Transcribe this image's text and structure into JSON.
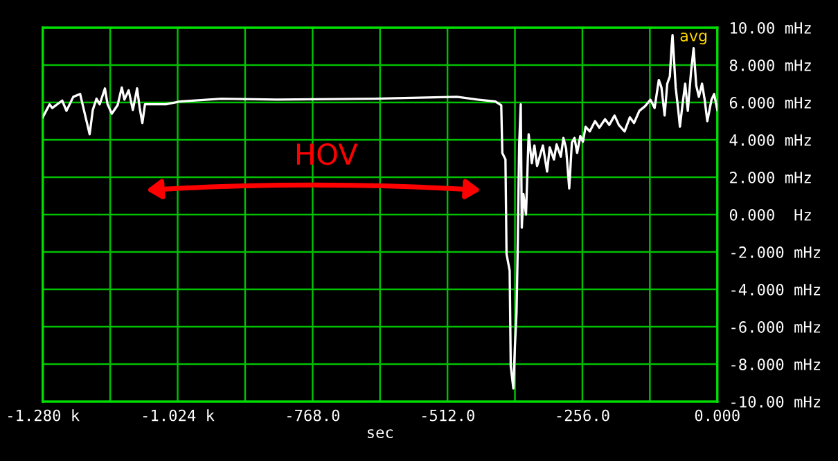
{
  "chart_data": {
    "type": "line",
    "xlabel": "sec",
    "annotations": [
      "HOV",
      "avg"
    ],
    "series": [
      {
        "color": "#ffffff",
        "x": [
          -1280,
          -1267,
          -1262,
          -1243,
          -1235,
          -1222,
          -1209,
          -1204,
          -1191,
          -1185,
          -1178,
          -1172,
          -1162,
          -1157,
          -1149,
          -1138,
          -1130,
          -1125,
          -1117,
          -1109,
          -1101,
          -1096,
          -1091,
          -1086,
          -1046,
          -1020,
          -941,
          -836,
          -652,
          -494,
          -455,
          -421,
          -410,
          -408,
          -402,
          -400,
          -394,
          -392,
          -387,
          -384,
          -381,
          -379,
          -376,
          -373,
          -371,
          -368,
          -363,
          -360,
          -358,
          -352,
          -347,
          -342,
          -331,
          -323,
          -318,
          -310,
          -305,
          -297,
          -292,
          -287,
          -281,
          -276,
          -271,
          -266,
          -260,
          -255,
          -250,
          -242,
          -232,
          -224,
          -213,
          -205,
          -195,
          -187,
          -176,
          -166,
          -158,
          -148,
          -137,
          -127,
          -119,
          -111,
          -106,
          -100,
          -95,
          -90,
          -87,
          -85,
          -79,
          -74,
          -71,
          -66,
          -61,
          -56,
          -50,
          -45,
          -40,
          -35,
          -29,
          -24,
          -19,
          -11,
          -6,
          0
        ],
        "values": [
          5.2,
          5.9,
          5.7,
          6.1,
          5.55,
          6.3,
          6.45,
          5.85,
          4.3,
          5.6,
          6.2,
          5.9,
          6.75,
          5.9,
          5.4,
          5.85,
          6.8,
          6.15,
          6.65,
          5.6,
          6.75,
          5.7,
          4.9,
          5.9,
          5.9,
          6.05,
          6.2,
          6.15,
          6.2,
          6.3,
          6.15,
          6.05,
          5.85,
          3.3,
          2.95,
          -2.1,
          -3.0,
          -8.1,
          -9.3,
          -7.0,
          -5.2,
          -2.2,
          3.7,
          5.9,
          -0.7,
          1.1,
          0.0,
          2.6,
          4.3,
          2.75,
          3.7,
          2.6,
          3.7,
          2.3,
          3.6,
          2.95,
          3.75,
          3.1,
          4.1,
          3.55,
          1.4,
          3.85,
          4.1,
          3.3,
          4.2,
          3.9,
          4.7,
          4.45,
          5.0,
          4.65,
          5.1,
          4.8,
          5.3,
          4.8,
          4.45,
          5.2,
          4.9,
          5.55,
          5.8,
          6.15,
          5.7,
          7.2,
          6.8,
          5.3,
          7.0,
          7.4,
          8.9,
          9.6,
          6.8,
          5.55,
          4.7,
          5.9,
          7.0,
          5.55,
          7.6,
          8.9,
          6.9,
          6.3,
          7.0,
          6.15,
          5.0,
          6.15,
          6.45,
          5.6
        ]
      }
    ],
    "xlim": [
      -1280,
      0
    ],
    "xticks": [
      {
        "value": -1280,
        "label": "-1.280 k"
      },
      {
        "value": -1152,
        "label": null
      },
      {
        "value": -1024,
        "label": "-1.024 k"
      },
      {
        "value": -896,
        "label": null
      },
      {
        "value": -768,
        "label": "-768.0"
      },
      {
        "value": -640,
        "label": null
      },
      {
        "value": -512,
        "label": "-512.0"
      },
      {
        "value": -384,
        "label": null
      },
      {
        "value": -256,
        "label": "-256.0"
      },
      {
        "value": -128,
        "label": null
      },
      {
        "value": 0,
        "label": "0.000"
      }
    ],
    "ylim": [
      -10,
      10
    ],
    "yticks": [
      {
        "value": -10,
        "label": "-10.00 mHz"
      },
      {
        "value": -8,
        "label": "-8.000 mHz"
      },
      {
        "value": -6,
        "label": "-6.000 mHz"
      },
      {
        "value": -4,
        "label": "-4.000 mHz"
      },
      {
        "value": -2,
        "label": "-2.000 mHz"
      },
      {
        "value": 0,
        "label": "0.000  Hz"
      },
      {
        "value": 2,
        "label": "2.000 mHz"
      },
      {
        "value": 4,
        "label": "4.000 mHz"
      },
      {
        "value": 6,
        "label": "6.000 mHz"
      },
      {
        "value": 8,
        "label": "8.000 mHz"
      },
      {
        "value": 10,
        "label": "10.00 mHz"
      }
    ],
    "grid": true,
    "marker": "none",
    "line_style": "solid"
  }
}
